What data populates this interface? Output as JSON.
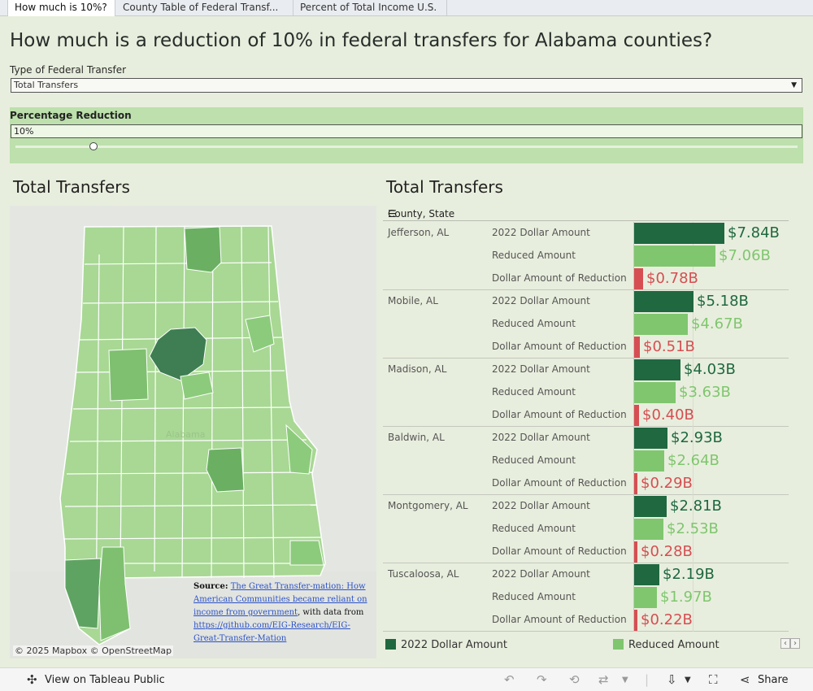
{
  "tabs": [
    {
      "label": "How much is 10%?",
      "active": true
    },
    {
      "label": "County Table of Federal Transf..."
    },
    {
      "label": "Percent of Total Income U.S."
    }
  ],
  "page": {
    "title": "How much is a reduction of 10% in federal transfers for Alabama counties?"
  },
  "filters": {
    "type_label": "Type of Federal Transfer",
    "type_value": "Total Transfers",
    "pct_label": "Percentage Reduction",
    "pct_value": "10%",
    "slider_fraction": 0.1
  },
  "map": {
    "title": "Total Transfers",
    "state_label": "Alabama",
    "source_bold": "Source:",
    "source_link_text": "The Great Transfer-mation: How American Communities became reliant on income from government",
    "source_mid": ", with data from",
    "source_url_text": "https://github.com/EIG-Research/EIG-Great-Transfer-Mation",
    "attribution": "© 2025 Mapbox  © OpenStreetMap"
  },
  "chart": {
    "title": "Total Transfers",
    "header": "County, State",
    "measures": [
      "2022 Dollar Amount",
      "Reduced Amount",
      "Dollar Amount of Reduction"
    ]
  },
  "chart_data": {
    "type": "bar",
    "title": "Total Transfers",
    "units": "billions USD",
    "categories": [
      "Jefferson, AL",
      "Mobile, AL",
      "Madison, AL",
      "Baldwin, AL",
      "Montgomery, AL",
      "Tuscaloosa, AL"
    ],
    "series": [
      {
        "name": "2022 Dollar Amount",
        "values": [
          7.84,
          5.18,
          4.03,
          2.93,
          2.81,
          2.19
        ],
        "labels": [
          "$7.84B",
          "$5.18B",
          "$4.03B",
          "$2.93B",
          "$2.81B",
          "$2.19B"
        ]
      },
      {
        "name": "Reduced Amount",
        "values": [
          7.06,
          4.67,
          3.63,
          2.64,
          2.53,
          1.97
        ],
        "labels": [
          "$7.06B",
          "$4.67B",
          "$3.63B",
          "$2.64B",
          "$2.53B",
          "$1.97B"
        ]
      },
      {
        "name": "Dollar Amount of Reduction",
        "values": [
          0.78,
          0.51,
          0.4,
          0.29,
          0.28,
          0.22
        ],
        "labels": [
          "$0.78B",
          "$0.51B",
          "$0.40B",
          "$0.29B",
          "$0.28B",
          "$0.22B"
        ]
      }
    ],
    "xlim": [
      0,
      7.84
    ],
    "legend_position": "bottom"
  },
  "legend": {
    "items": [
      {
        "label": "2022 Dollar Amount",
        "color": "#1f6840"
      },
      {
        "label": "Reduced Amount",
        "color": "#7fc66f"
      }
    ]
  },
  "colors": {
    "dark_green": "#1f6840",
    "light_green": "#7fc66f",
    "red": "#d64e52"
  },
  "toolbar": {
    "view_label": "View on Tableau Public",
    "share_label": "Share"
  }
}
